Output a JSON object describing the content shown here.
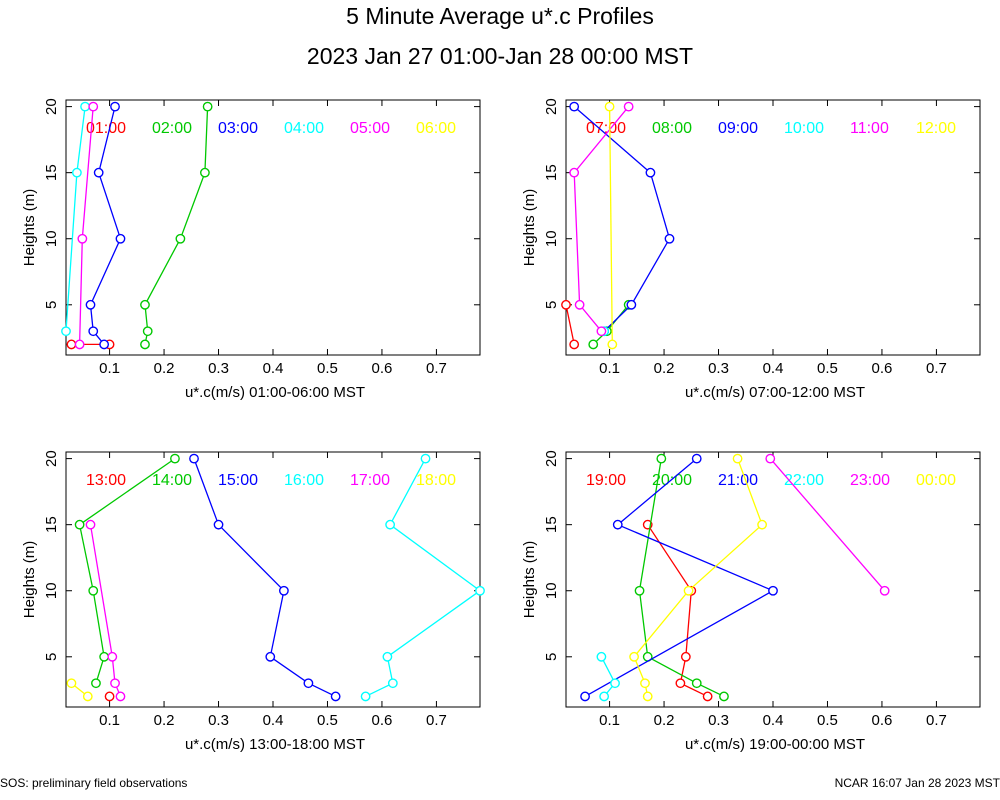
{
  "title": "5 Minute Average u*.c Profiles",
  "subtitle": "2023 Jan 27 01:00-Jan 28 00:00 MST",
  "footer_left": "SOS: preliminary field observations",
  "footer_right": "NCAR 16:07 Jan 28 2023 MST",
  "colors": {
    "red": "#ff0000",
    "green": "#00c800",
    "blue": "#0000ff",
    "cyan": "#00ffff",
    "magenta": "#ff00ff",
    "yellow": "#ffff00"
  },
  "chart_data": [
    {
      "type": "line",
      "xlabel": "u*.c(m/s) 01:00-06:00 MST",
      "ylabel": "Heights (m)",
      "xlim": [
        0.02,
        0.78
      ],
      "ylim": [
        1.2,
        20.5
      ],
      "xticks": [
        0.1,
        0.2,
        0.3,
        0.4,
        0.5,
        0.6,
        0.7
      ],
      "yticks": [
        5,
        10,
        15,
        20
      ],
      "series": [
        {
          "name": "01:00",
          "color": "red",
          "points": [
            [
              0.03,
              2
            ],
            [
              0.1,
              2
            ]
          ]
        },
        {
          "name": "02:00",
          "color": "green",
          "points": [
            [
              0.165,
              2
            ],
            [
              0.17,
              3
            ],
            [
              0.165,
              5
            ],
            [
              0.23,
              10
            ],
            [
              0.275,
              15
            ],
            [
              0.28,
              20
            ]
          ]
        },
        {
          "name": "03:00",
          "color": "blue",
          "points": [
            [
              0.09,
              2
            ],
            [
              0.07,
              3
            ],
            [
              0.065,
              5
            ],
            [
              0.12,
              10
            ],
            [
              0.08,
              15
            ],
            [
              0.11,
              20
            ]
          ]
        },
        {
          "name": "04:00",
          "color": "cyan",
          "points": [
            [
              0.02,
              3
            ],
            [
              0.04,
              15
            ],
            [
              0.055,
              20
            ]
          ]
        },
        {
          "name": "05:00",
          "color": "magenta",
          "points": [
            [
              0.045,
              2
            ],
            [
              0.05,
              10
            ],
            [
              0.07,
              20
            ]
          ]
        },
        {
          "name": "06:00",
          "color": "yellow",
          "points": []
        }
      ]
    },
    {
      "type": "line",
      "xlabel": "u*.c(m/s) 07:00-12:00 MST",
      "ylabel": "Heights (m)",
      "xlim": [
        0.02,
        0.78
      ],
      "ylim": [
        1.2,
        20.5
      ],
      "xticks": [
        0.1,
        0.2,
        0.3,
        0.4,
        0.5,
        0.6,
        0.7
      ],
      "yticks": [
        5,
        10,
        15,
        20
      ],
      "series": [
        {
          "name": "07:00",
          "color": "red",
          "points": [
            [
              0.035,
              2
            ],
            [
              0.02,
              5
            ]
          ]
        },
        {
          "name": "08:00",
          "color": "green",
          "points": [
            [
              0.07,
              2
            ],
            [
              0.095,
              3
            ],
            [
              0.135,
              5
            ]
          ]
        },
        {
          "name": "09:00",
          "color": "blue",
          "points": [
            [
              0.09,
              3
            ],
            [
              0.14,
              5
            ],
            [
              0.21,
              10
            ],
            [
              0.175,
              15
            ],
            [
              0.035,
              20
            ]
          ]
        },
        {
          "name": "10:00",
          "color": "cyan",
          "points": [
            [
              0.09,
              3
            ]
          ]
        },
        {
          "name": "11:00",
          "color": "magenta",
          "points": [
            [
              0.085,
              3
            ],
            [
              0.045,
              5
            ],
            [
              0.035,
              15
            ],
            [
              0.135,
              20
            ]
          ]
        },
        {
          "name": "12:00",
          "color": "yellow",
          "points": [
            [
              0.105,
              2
            ],
            [
              0.1,
              20
            ]
          ]
        }
      ]
    },
    {
      "type": "line",
      "xlabel": "u*.c(m/s) 13:00-18:00 MST",
      "ylabel": "Heights (m)",
      "xlim": [
        0.02,
        0.78
      ],
      "ylim": [
        1.2,
        20.5
      ],
      "xticks": [
        0.1,
        0.2,
        0.3,
        0.4,
        0.5,
        0.6,
        0.7
      ],
      "yticks": [
        5,
        10,
        15,
        20
      ],
      "series": [
        {
          "name": "13:00",
          "color": "red",
          "points": [
            [
              0.1,
              2
            ]
          ]
        },
        {
          "name": "14:00",
          "color": "green",
          "points": [
            [
              0.075,
              3
            ],
            [
              0.09,
              5
            ],
            [
              0.07,
              10
            ],
            [
              0.045,
              15
            ],
            [
              0.22,
              20
            ]
          ]
        },
        {
          "name": "15:00",
          "color": "blue",
          "points": [
            [
              0.515,
              2
            ],
            [
              0.465,
              3
            ],
            [
              0.395,
              5
            ],
            [
              0.42,
              10
            ],
            [
              0.3,
              15
            ],
            [
              0.255,
              20
            ]
          ]
        },
        {
          "name": "16:00",
          "color": "cyan",
          "points": [
            [
              0.57,
              2
            ],
            [
              0.62,
              3
            ],
            [
              0.61,
              5
            ],
            [
              0.78,
              10
            ],
            [
              0.615,
              15
            ],
            [
              0.68,
              20
            ]
          ]
        },
        {
          "name": "17:00",
          "color": "magenta",
          "points": [
            [
              0.12,
              2
            ],
            [
              0.11,
              3
            ],
            [
              0.105,
              5
            ],
            [
              0.065,
              15
            ]
          ]
        },
        {
          "name": "18:00",
          "color": "yellow",
          "points": [
            [
              0.06,
              2
            ],
            [
              0.03,
              3
            ]
          ]
        }
      ]
    },
    {
      "type": "line",
      "xlabel": "u*.c(m/s) 19:00-00:00 MST",
      "ylabel": "Heights (m)",
      "xlim": [
        0.02,
        0.78
      ],
      "ylim": [
        1.2,
        20.5
      ],
      "xticks": [
        0.1,
        0.2,
        0.3,
        0.4,
        0.5,
        0.6,
        0.7
      ],
      "yticks": [
        5,
        10,
        15,
        20
      ],
      "series": [
        {
          "name": "19:00",
          "color": "red",
          "points": [
            [
              0.28,
              2
            ],
            [
              0.23,
              3
            ],
            [
              0.24,
              5
            ],
            [
              0.25,
              10
            ],
            [
              0.17,
              15
            ]
          ]
        },
        {
          "name": "20:00",
          "color": "green",
          "points": [
            [
              0.31,
              2
            ],
            [
              0.26,
              3
            ],
            [
              0.17,
              5
            ],
            [
              0.155,
              10
            ],
            [
              0.195,
              20
            ]
          ]
        },
        {
          "name": "21:00",
          "color": "blue",
          "points": [
            [
              0.055,
              2
            ],
            [
              0.4,
              10
            ],
            [
              0.115,
              15
            ],
            [
              0.26,
              20
            ]
          ]
        },
        {
          "name": "22:00",
          "color": "cyan",
          "points": [
            [
              0.09,
              2
            ],
            [
              0.11,
              3
            ],
            [
              0.085,
              5
            ]
          ]
        },
        {
          "name": "23:00",
          "color": "magenta",
          "points": [
            [
              0.605,
              10
            ],
            [
              0.395,
              20
            ]
          ]
        },
        {
          "name": "00:00",
          "color": "yellow",
          "points": [
            [
              0.17,
              2
            ],
            [
              0.165,
              3
            ],
            [
              0.145,
              5
            ],
            [
              0.245,
              10
            ],
            [
              0.38,
              15
            ],
            [
              0.335,
              20
            ]
          ]
        }
      ]
    }
  ]
}
